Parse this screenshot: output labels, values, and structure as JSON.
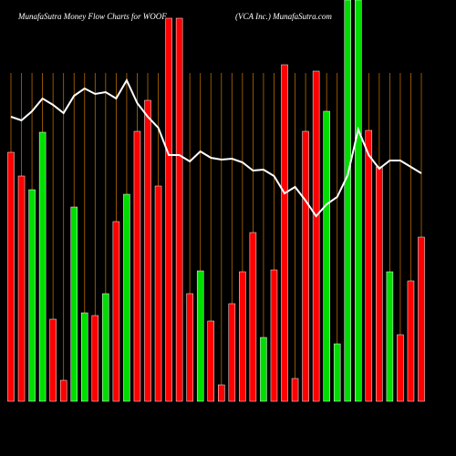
{
  "chart_data": {
    "type": "bar",
    "title": "MunafaSutra  Money Flow  Charts for WOOF",
    "subtitle": "(VCA Inc.) MunafaSutra.com",
    "values": [
      273,
      247,
      232,
      295,
      90,
      23,
      213,
      97,
      94,
      118,
      197,
      227,
      296,
      330,
      236,
      420,
      420,
      118,
      143,
      88,
      18,
      107,
      142,
      185,
      70,
      144,
      369,
      25,
      296,
      362,
      318,
      63,
      440,
      440,
      297,
      257,
      142,
      73,
      132,
      180
    ],
    "colors": [
      "#ff0000",
      "#ff0000",
      "#00dd00",
      "#00dd00",
      "#ff0000",
      "#ff0000",
      "#00dd00",
      "#00dd00",
      "#ff0000",
      "#00dd00",
      "#ff0000",
      "#00dd00",
      "#ff0000",
      "#ff0000",
      "#ff0000",
      "#ff0000",
      "#ff0000",
      "#ff0000",
      "#00dd00",
      "#ff0000",
      "#ff0000",
      "#ff0000",
      "#ff0000",
      "#ff0000",
      "#00dd00",
      "#ff0000",
      "#ff0000",
      "#ff0000",
      "#ff0000",
      "#ff0000",
      "#00dd00",
      "#00dd00",
      "#00dd00",
      "#00dd00",
      "#ff0000",
      "#ff0000",
      "#00dd00",
      "#ff0000",
      "#ff0000",
      "#ff0000"
    ],
    "line": {
      "color": "#ffffff",
      "values": [
        312,
        308,
        318,
        332,
        325,
        316,
        335,
        343,
        337,
        339,
        332,
        352,
        327,
        312,
        300,
        270,
        270,
        263,
        274,
        267,
        265,
        266,
        262,
        253,
        254,
        247,
        228,
        235,
        220,
        203,
        216,
        224,
        248,
        298,
        270,
        255,
        264,
        264,
        257,
        250
      ]
    },
    "ylim": [
      0,
      440
    ],
    "grid_color": "#b86a00"
  }
}
